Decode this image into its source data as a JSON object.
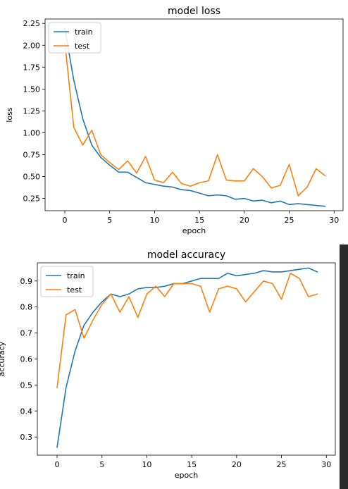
{
  "chart_data": [
    {
      "type": "line",
      "title": "model loss",
      "xlabel": "epoch",
      "ylabel": "loss",
      "xlim": [
        -2.2,
        31.0
      ],
      "ylim": [
        0.11,
        2.3
      ],
      "xticks": [
        0,
        5,
        10,
        15,
        20,
        25,
        30
      ],
      "xtick_labels": [
        "0",
        "5",
        "10",
        "15",
        "20",
        "25",
        "30"
      ],
      "yticks": [
        0.25,
        0.5,
        0.75,
        1.0,
        1.25,
        1.5,
        1.75,
        2.0,
        2.25
      ],
      "ytick_labels": [
        "0.25",
        "0.50",
        "0.75",
        "1.00",
        "1.25",
        "1.50",
        "1.75",
        "2.00",
        "2.25"
      ],
      "grid": false,
      "legend": "top-left",
      "x": [
        0,
        1,
        2,
        3,
        4,
        5,
        6,
        7,
        8,
        9,
        10,
        11,
        12,
        13,
        14,
        15,
        16,
        17,
        18,
        19,
        20,
        21,
        22,
        23,
        24,
        25,
        26,
        27,
        28,
        29
      ],
      "series": [
        {
          "name": "train",
          "color": "#1f77b4",
          "values": [
            2.19,
            1.6,
            1.16,
            0.86,
            0.72,
            0.63,
            0.55,
            0.55,
            0.49,
            0.43,
            0.41,
            0.39,
            0.38,
            0.35,
            0.34,
            0.31,
            0.28,
            0.29,
            0.28,
            0.24,
            0.25,
            0.22,
            0.23,
            0.2,
            0.22,
            0.18,
            0.19,
            0.18,
            0.17,
            0.16
          ]
        },
        {
          "name": "test",
          "color": "#ff7f0e",
          "values": [
            2.03,
            1.06,
            0.86,
            1.03,
            0.75,
            0.66,
            0.58,
            0.68,
            0.54,
            0.73,
            0.46,
            0.43,
            0.55,
            0.42,
            0.39,
            0.43,
            0.45,
            0.75,
            0.46,
            0.45,
            0.45,
            0.59,
            0.5,
            0.37,
            0.4,
            0.64,
            0.28,
            0.38,
            0.59,
            0.51
          ]
        }
      ]
    },
    {
      "type": "line",
      "title": "model accuracy",
      "xlabel": "epoch",
      "ylabel": "accuracy",
      "xlim": [
        -2.2,
        31.0
      ],
      "ylim": [
        0.23,
        0.97
      ],
      "xticks": [
        0,
        5,
        10,
        15,
        20,
        25,
        30
      ],
      "xtick_labels": [
        "0",
        "5",
        "10",
        "15",
        "20",
        "25",
        "30"
      ],
      "yticks": [
        0.3,
        0.4,
        0.5,
        0.6,
        0.7,
        0.8,
        0.9
      ],
      "ytick_labels": [
        "0.3",
        "0.4",
        "0.5",
        "0.6",
        "0.7",
        "0.8",
        "0.9"
      ],
      "grid": false,
      "legend": "top-left",
      "x": [
        0,
        1,
        2,
        3,
        4,
        5,
        6,
        7,
        8,
        9,
        10,
        11,
        12,
        13,
        14,
        15,
        16,
        17,
        18,
        19,
        20,
        21,
        22,
        23,
        24,
        25,
        26,
        27,
        28,
        29
      ],
      "series": [
        {
          "name": "train",
          "color": "#1f77b4",
          "values": [
            0.26,
            0.49,
            0.63,
            0.73,
            0.78,
            0.82,
            0.85,
            0.84,
            0.85,
            0.87,
            0.875,
            0.875,
            0.88,
            0.89,
            0.89,
            0.9,
            0.91,
            0.91,
            0.91,
            0.93,
            0.92,
            0.925,
            0.93,
            0.94,
            0.935,
            0.935,
            0.94,
            0.945,
            0.95,
            0.935
          ]
        },
        {
          "name": "test",
          "color": "#ff7f0e",
          "values": [
            0.49,
            0.77,
            0.79,
            0.68,
            0.75,
            0.81,
            0.85,
            0.78,
            0.84,
            0.76,
            0.85,
            0.88,
            0.84,
            0.89,
            0.89,
            0.89,
            0.88,
            0.78,
            0.87,
            0.88,
            0.87,
            0.82,
            0.86,
            0.9,
            0.89,
            0.83,
            0.93,
            0.91,
            0.84,
            0.85
          ]
        }
      ]
    }
  ]
}
